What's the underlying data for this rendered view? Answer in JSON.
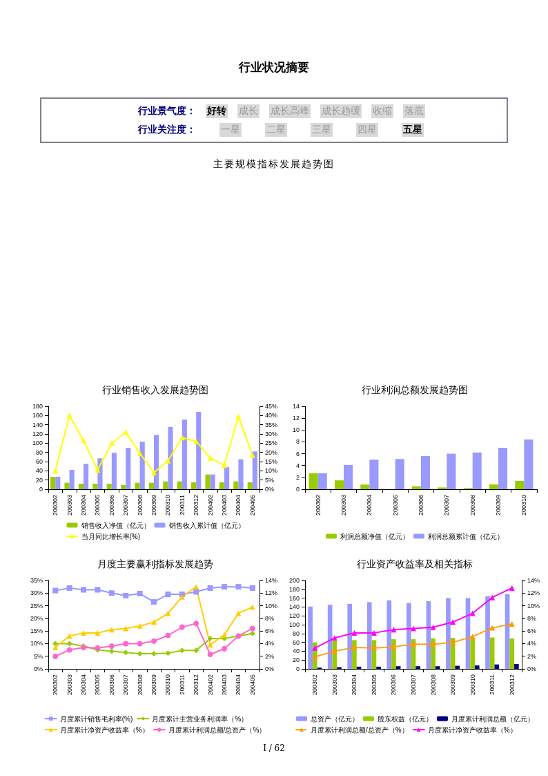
{
  "chart_data": [
    {
      "type": "other",
      "title": "行业状况摘要",
      "annotations": [
        "行业景气度：",
        "好转",
        "成长",
        "成长高峰",
        "成长趋缓",
        "收缩",
        "落底",
        "行业关注度：",
        "一星",
        "二星",
        "三星",
        "四星",
        "五星",
        "主要规模指标发展趋势图",
        "I / 62"
      ]
    },
    {
      "type": "bar",
      "title": "行业销售收入发展趋势图",
      "categories": [
        "200302",
        "200303",
        "200304",
        "200305",
        "200306",
        "200307",
        "200308",
        "200309",
        "200310",
        "200311",
        "200312",
        "200402",
        "200403",
        "200404",
        "200405"
      ],
      "ylim": [
        0,
        180
      ],
      "yticks": [
        0,
        20,
        40,
        60,
        80,
        100,
        120,
        140,
        160,
        180
      ],
      "y2lim": [
        0,
        45
      ],
      "y2ticks": [
        {
          "value": 0,
          "label": "0%"
        },
        {
          "value": 5,
          "label": "5%"
        },
        {
          "value": 10,
          "label": "10%"
        },
        {
          "value": 15,
          "label": "15%"
        },
        {
          "value": 20,
          "label": "20%"
        },
        {
          "value": 25,
          "label": "25%"
        },
        {
          "value": 30,
          "label": "30%"
        },
        {
          "value": 35,
          "label": "35%"
        },
        {
          "value": 40,
          "label": "40%"
        },
        {
          "value": 45,
          "label": "45%"
        }
      ],
      "legend": "bottom",
      "series": [
        {
          "name": "销售收入净值（亿元）",
          "color": "#99cc00",
          "values": [
            27,
            14,
            12,
            12,
            12,
            9,
            14,
            14,
            17,
            17,
            15,
            32,
            15,
            17,
            15
          ]
        },
        {
          "name": "销售收入累计值（亿元）",
          "color": "#9999ff",
          "values": [
            27,
            42,
            55,
            67,
            79,
            90,
            103,
            118,
            135,
            151,
            168,
            32,
            48,
            65,
            82
          ]
        },
        {
          "name": "当月同比增长率(%)",
          "type": "line",
          "axis": "y2",
          "color": "#ffff00",
          "marker": "triangle",
          "values": [
            10,
            40,
            26.5,
            10.5,
            25,
            31,
            19.5,
            9,
            15.5,
            28,
            26,
            17,
            13,
            39.5,
            18.5
          ]
        }
      ]
    },
    {
      "type": "bar",
      "title": "行业利润总额发展趋势图",
      "categories": [
        "200302",
        "200303",
        "200304",
        "200305",
        "200306",
        "200307",
        "200308",
        "200309",
        "200310"
      ],
      "ylim": [
        0,
        14
      ],
      "yticks": [
        0,
        2,
        4,
        6,
        8,
        10,
        12,
        14
      ],
      "legend": "bottom",
      "series": [
        {
          "name": "利润总额净值（亿元）",
          "color": "#99cc00",
          "values": [
            2.7,
            1.5,
            0.8,
            null,
            0.5,
            0.3,
            0.2,
            0.8,
            1.4
          ]
        },
        {
          "name": "利润总额累计值（亿元）",
          "color": "#9999ff",
          "values": [
            2.7,
            4.1,
            5.0,
            5.1,
            5.6,
            6.0,
            6.2,
            7.0,
            8.4
          ]
        }
      ]
    },
    {
      "type": "line",
      "title": "月度主要赢利指标发展趋势",
      "categories": [
        "200302",
        "200303",
        "200304",
        "200305",
        "200306",
        "200307",
        "200308",
        "200309",
        "200310",
        "200311",
        "200312",
        "200402",
        "200403",
        "200404",
        "200405"
      ],
      "ylim": [
        0,
        35
      ],
      "yticks": [
        {
          "value": 0,
          "label": "0%"
        },
        {
          "value": 5,
          "label": "5%"
        },
        {
          "value": 10,
          "label": "10%"
        },
        {
          "value": 15,
          "label": "15%"
        },
        {
          "value": 20,
          "label": "20%"
        },
        {
          "value": 25,
          "label": "25%"
        },
        {
          "value": 30,
          "label": "30%"
        },
        {
          "value": 35,
          "label": "35%"
        }
      ],
      "y2lim": [
        0,
        14
      ],
      "y2ticks": [
        {
          "value": 0,
          "label": "0%"
        },
        {
          "value": 2,
          "label": "2%"
        },
        {
          "value": 4,
          "label": "4%"
        },
        {
          "value": 6,
          "label": "6%"
        },
        {
          "value": 8,
          "label": "8%"
        },
        {
          "value": 10,
          "label": "10%"
        },
        {
          "value": 12,
          "label": "12%"
        },
        {
          "value": 14,
          "label": "14%"
        }
      ],
      "legend": "bottom",
      "series": [
        {
          "name": "月度累计销售毛利率(%)",
          "color": "#9999ff",
          "marker": "square",
          "values": [
            31,
            32,
            31.3,
            31.3,
            30,
            29,
            29.8,
            26.5,
            29.5,
            29.5,
            30.5,
            32,
            32.5,
            32.5,
            32
          ]
        },
        {
          "name": "月度累计主营业务利润率（%）",
          "color": "#99cc00",
          "marker": "diamond",
          "values": [
            10,
            10,
            9,
            7.5,
            7,
            6.5,
            6,
            6,
            6.2,
            7.3,
            7.3,
            12,
            12,
            13,
            14
          ]
        },
        {
          "name": "月度累计净资产收益率（%）",
          "color": "#ffcc00",
          "marker": "triangle",
          "axis": "y2",
          "values": [
            3.4,
            5.2,
            5.7,
            5.7,
            6.2,
            6.4,
            6.8,
            7.4,
            8.8,
            11.4,
            13,
            3.8,
            5.4,
            8.8,
            9.8
          ]
        },
        {
          "name": "月度累计利润总额/总资产（%）",
          "color": "#ff66cc",
          "marker": "circle",
          "axis": "y2",
          "values": [
            2.0,
            3.0,
            3.4,
            3.3,
            3.6,
            4.0,
            4.0,
            4.4,
            5.3,
            6.6,
            7.2,
            2.3,
            3.2,
            5.2,
            6.4
          ]
        }
      ]
    },
    {
      "type": "bar",
      "title": "行业资产收益率及相关指标",
      "categories": [
        "200302",
        "200303",
        "200304",
        "200305",
        "200306",
        "200307",
        "200308",
        "200309",
        "200310",
        "200311",
        "200312"
      ],
      "ylim": [
        0,
        200
      ],
      "yticks": [
        0,
        20,
        40,
        60,
        80,
        100,
        120,
        140,
        160,
        180,
        200
      ],
      "y2lim": [
        0,
        14
      ],
      "y2ticks": [
        {
          "value": 0,
          "label": "0%"
        },
        {
          "value": 2,
          "label": "2%"
        },
        {
          "value": 4,
          "label": "4%"
        },
        {
          "value": 6,
          "label": "6%"
        },
        {
          "value": 8,
          "label": "8%"
        },
        {
          "value": 10,
          "label": "10%"
        },
        {
          "value": 12,
          "label": "12%"
        },
        {
          "value": 14,
          "label": "14%"
        }
      ],
      "legend": "bottom",
      "series": [
        {
          "name": "总资产（亿元）",
          "color": "#9999ff",
          "values": [
            141,
            145,
            147,
            151,
            155,
            149,
            153,
            160,
            160,
            164,
            169
          ]
        },
        {
          "name": "股东权益（亿元）",
          "color": "#99cc00",
          "values": [
            60,
            63,
            65,
            65,
            67,
            67,
            69,
            70,
            68,
            71,
            69
          ]
        },
        {
          "name": "月度累计利润总额（亿元）",
          "color": "#000080",
          "values": [
            3,
            4,
            5,
            5,
            6,
            6,
            6,
            7,
            8,
            10,
            11
          ]
        },
        {
          "name": "月度累计利润总额/总资产（%）",
          "type": "line",
          "axis": "y2",
          "color": "#ff9900",
          "marker": "triangle",
          "line_style": "dotted",
          "values": [
            1.9,
            2.8,
            3.4,
            3.3,
            3.5,
            3.9,
            3.9,
            4.2,
            5.1,
            6.5,
            7.1
          ]
        },
        {
          "name": "月度累计净资产收益率（%）",
          "type": "line",
          "axis": "y2",
          "color": "#ff00ff",
          "marker": "triangle",
          "values": [
            3.3,
            4.9,
            5.7,
            5.7,
            6.2,
            6.4,
            6.6,
            7.4,
            8.8,
            11.3,
            12.8
          ]
        }
      ]
    }
  ]
}
